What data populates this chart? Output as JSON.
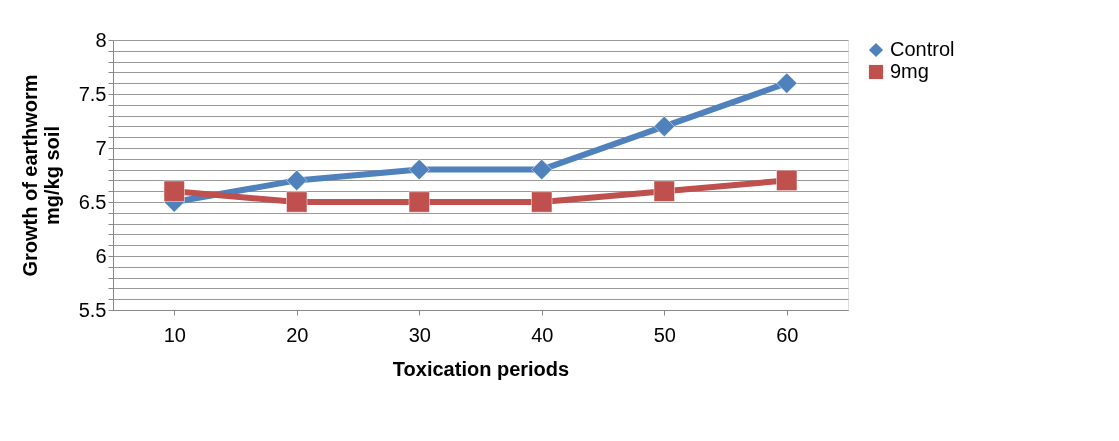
{
  "chart_data": {
    "type": "line",
    "xlabel": "Toxication periods",
    "ylabel": "Growth of earthworm\nmg/kg soil",
    "categories": [
      "10",
      "20",
      "30",
      "40",
      "50",
      "60"
    ],
    "series": [
      {
        "name": "Control",
        "color": "#4f81bd",
        "marker": "diamond",
        "values": [
          6.5,
          6.7,
          6.8,
          6.8,
          7.2,
          7.6
        ]
      },
      {
        "name": "9mg",
        "color": "#c0504d",
        "marker": "square",
        "values": [
          6.6,
          6.5,
          6.5,
          6.5,
          6.6,
          6.7
        ]
      }
    ],
    "ylim": [
      5.5,
      8
    ],
    "yticks": [
      5.5,
      {
        "value": 5.6,
        "label": null
      },
      {
        "value": 5.7,
        "label": null
      },
      {
        "value": 5.8,
        "label": null
      },
      {
        "value": 5.9,
        "label": null
      },
      6,
      {
        "value": 6.1,
        "label": null
      },
      {
        "value": 6.2,
        "label": null
      },
      {
        "value": 6.3,
        "label": null
      },
      {
        "value": 6.4,
        "label": null
      },
      6.5,
      {
        "value": 6.6,
        "label": null
      },
      {
        "value": 6.7,
        "label": null
      },
      {
        "value": 6.8,
        "label": null
      },
      {
        "value": 6.9,
        "label": null
      },
      7,
      {
        "value": 7.1,
        "label": null
      },
      {
        "value": 7.2,
        "label": null
      },
      {
        "value": 7.3,
        "label": null
      },
      {
        "value": 7.4,
        "label": null
      },
      7.5,
      {
        "value": 7.6,
        "label": null
      },
      {
        "value": 7.7,
        "label": null
      },
      {
        "value": 7.8,
        "label": null
      },
      {
        "value": 7.9,
        "label": null
      },
      8
    ],
    "grid": "y",
    "legend": "right",
    "line_style": "solid"
  }
}
